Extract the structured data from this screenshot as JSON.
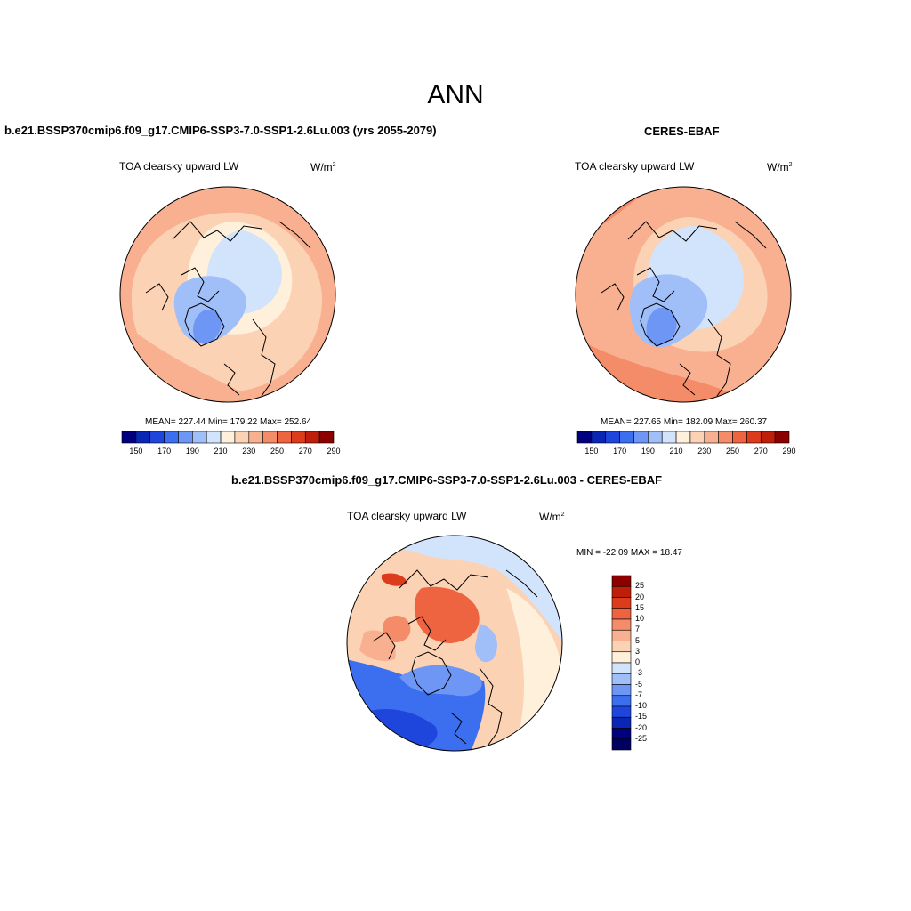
{
  "figure": {
    "title": "ANN",
    "panels": [
      {
        "id": "model",
        "title": "b.e21.BSSP370cmip6.f09_g17.CMIP6-SSP3-7.0-SSP1-2.6Lu.003 (yrs 2055-2079)",
        "variable": "TOA clearsky upward LW",
        "units_base": "W/m",
        "units_exp": "2",
        "stats": "MEAN= 227.44  Min= 179.22  Max= 252.64"
      },
      {
        "id": "obs",
        "title": "CERES-EBAF",
        "variable": "TOA clearsky upward LW",
        "units_base": "W/m",
        "units_exp": "2",
        "stats": "MEAN= 227.65  Min= 182.09  Max= 260.37"
      },
      {
        "id": "diff",
        "title": "b.e21.BSSP370cmip6.f09_g17.CMIP6-SSP3-7.0-SSP1-2.6Lu.003 - CERES-EBAF",
        "variable": "TOA clearsky upward LW",
        "units_base": "W/m",
        "units_exp": "2",
        "stats": "MIN = -22.09 MAX =  18.47"
      }
    ],
    "abs_colorbar": {
      "labels": [
        "150",
        "170",
        "190",
        "210",
        "230",
        "250",
        "270",
        "290"
      ],
      "colors": [
        "#00007f",
        "#0a26b4",
        "#1e46dc",
        "#3c6ef0",
        "#6e96f5",
        "#a0bef8",
        "#d2e4fc",
        "#fff0dc",
        "#fcd2b4",
        "#f8b090",
        "#f48c6a",
        "#ee6440",
        "#dc3c1c",
        "#be1e0a",
        "#8c0000"
      ]
    },
    "diff_colorbar": {
      "labels": [
        "25",
        "20",
        "15",
        "10",
        "7",
        "5",
        "3",
        "0",
        "-3",
        "-5",
        "-7",
        "-10",
        "-15",
        "-20",
        "-25"
      ],
      "colors": [
        "#8c0000",
        "#be1e0a",
        "#dc3c1c",
        "#ee6440",
        "#f48c6a",
        "#f8b090",
        "#fcd2b4",
        "#fff0dc",
        "#d2e4fc",
        "#a0bef8",
        "#6e96f5",
        "#3c6ef0",
        "#1e46dc",
        "#0a26b4",
        "#00007f",
        "#000060"
      ]
    }
  }
}
